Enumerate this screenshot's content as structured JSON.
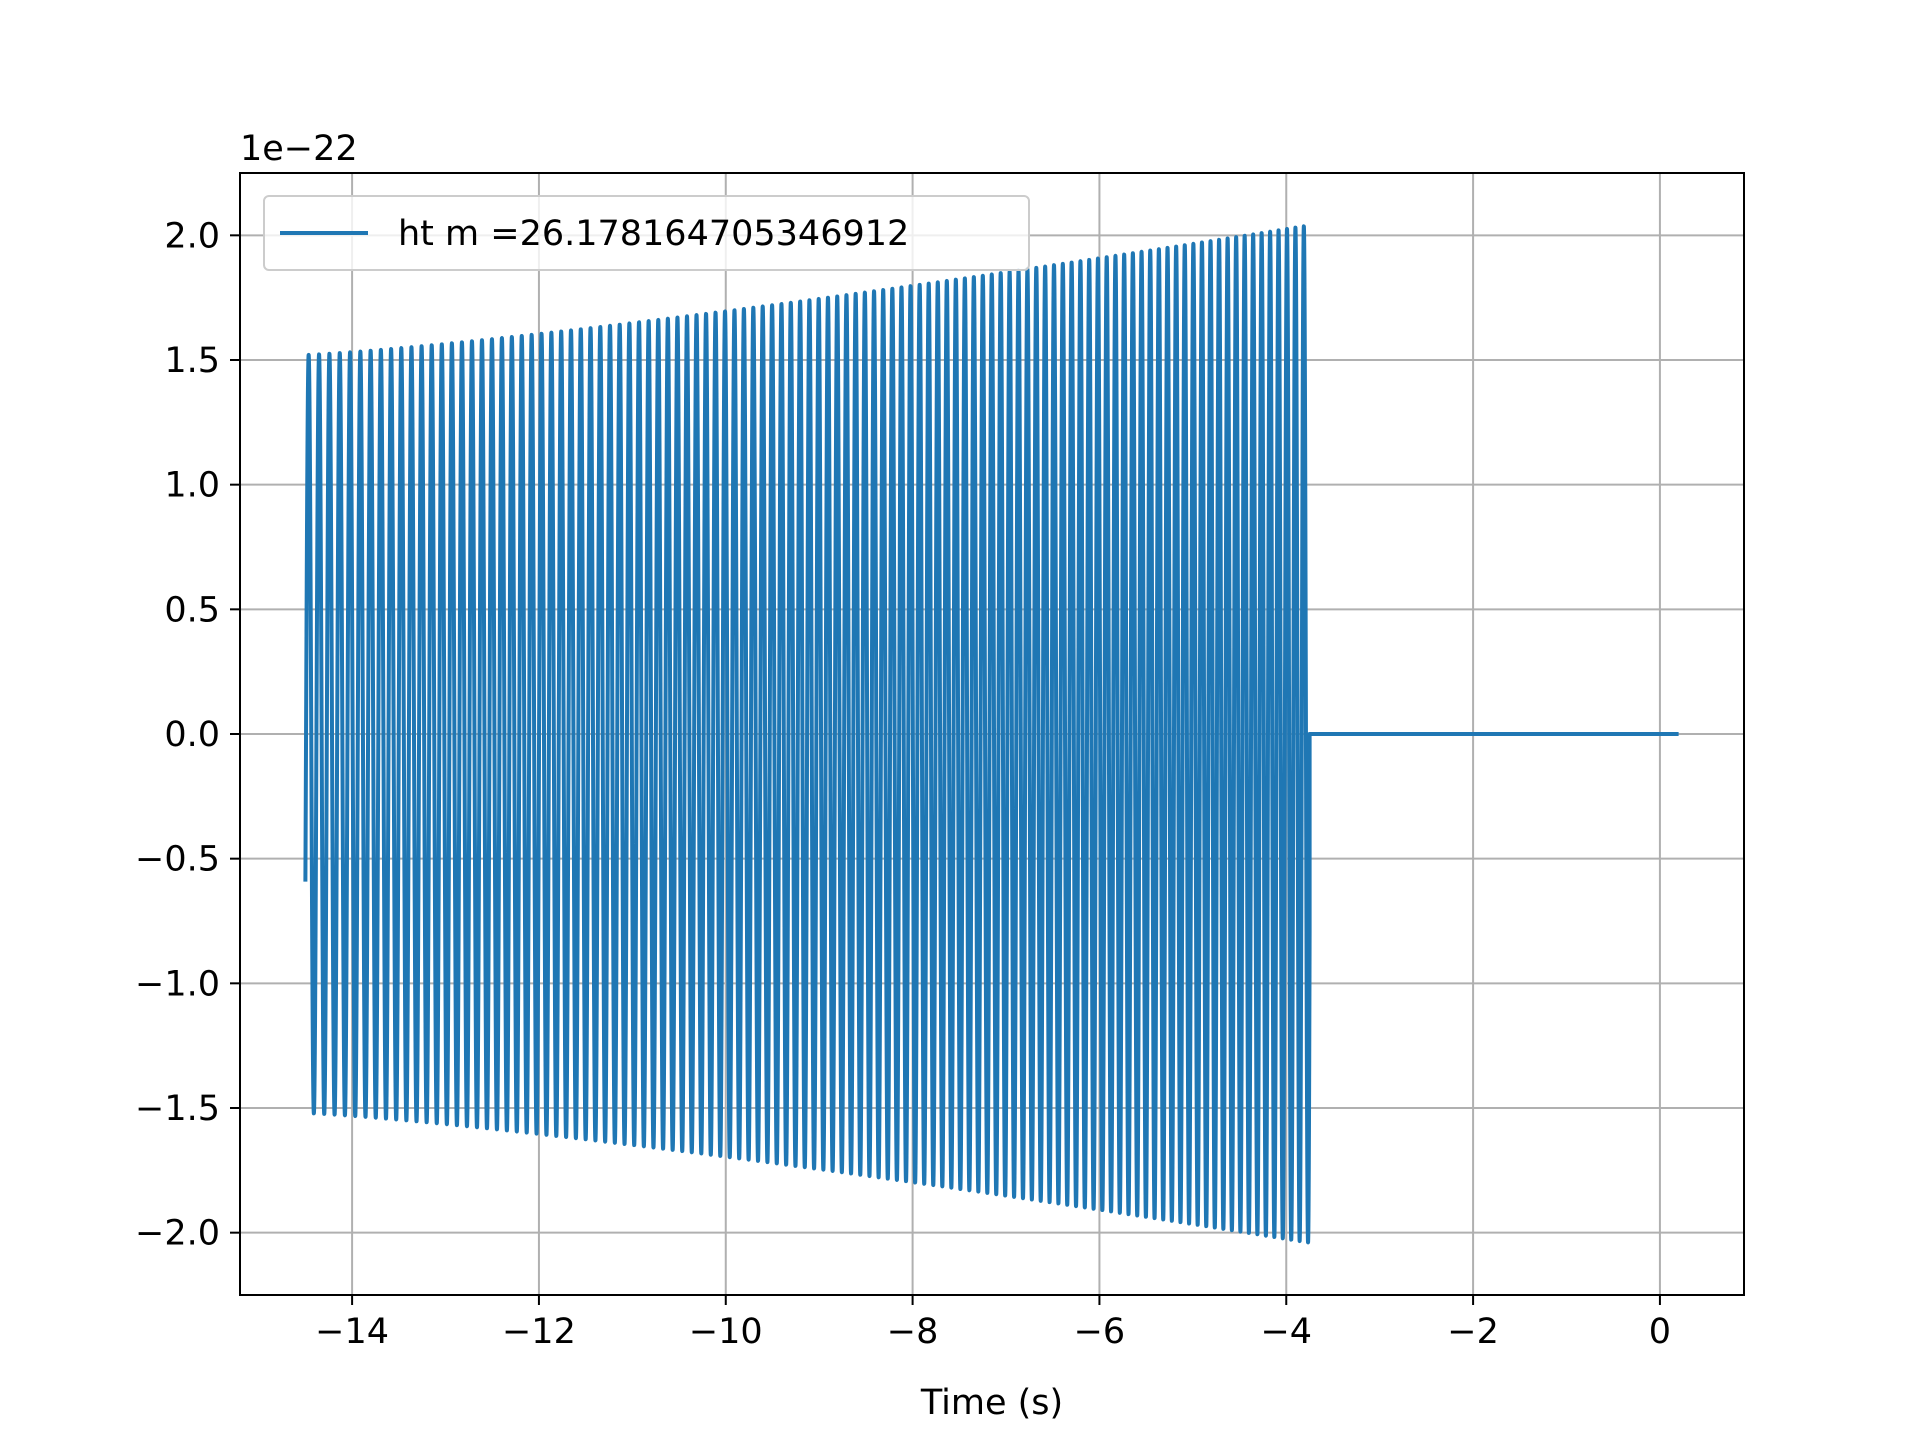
{
  "chart_data": {
    "type": "line",
    "title": "",
    "xlabel": "Time (s)",
    "ylabel": "",
    "y_offset_text": "1e−22",
    "xlim": [
      -15.2,
      0.9
    ],
    "ylim": [
      -2.25,
      2.25
    ],
    "grid": true,
    "legend_placement": "upper-left",
    "x_ticks": [
      -14,
      -12,
      -10,
      -8,
      -6,
      -4,
      -2,
      0
    ],
    "x_tick_labels": [
      "−14",
      "−12",
      "−10",
      "−8",
      "−6",
      "−4",
      "−2",
      "0"
    ],
    "y_ticks": [
      2.0,
      1.5,
      1.0,
      0.5,
      0.0,
      -0.5,
      -1.0,
      -1.5,
      -2.0
    ],
    "y_tick_labels": [
      "2.0",
      "1.5",
      "1.0",
      "0.5",
      "0.0",
      "−0.5",
      "−1.0",
      "−1.5",
      "−2.0"
    ],
    "series": [
      {
        "name": "ht m =26.178164705346912",
        "color": "#1f77b4",
        "signal": {
          "t_start": -14.5,
          "t_end_oscillation": -3.75,
          "t_end": 0.2,
          "amplitude_start": 1.52,
          "amplitude_end": 2.04,
          "cycles": 108,
          "value_after": 0.0
        }
      }
    ]
  }
}
